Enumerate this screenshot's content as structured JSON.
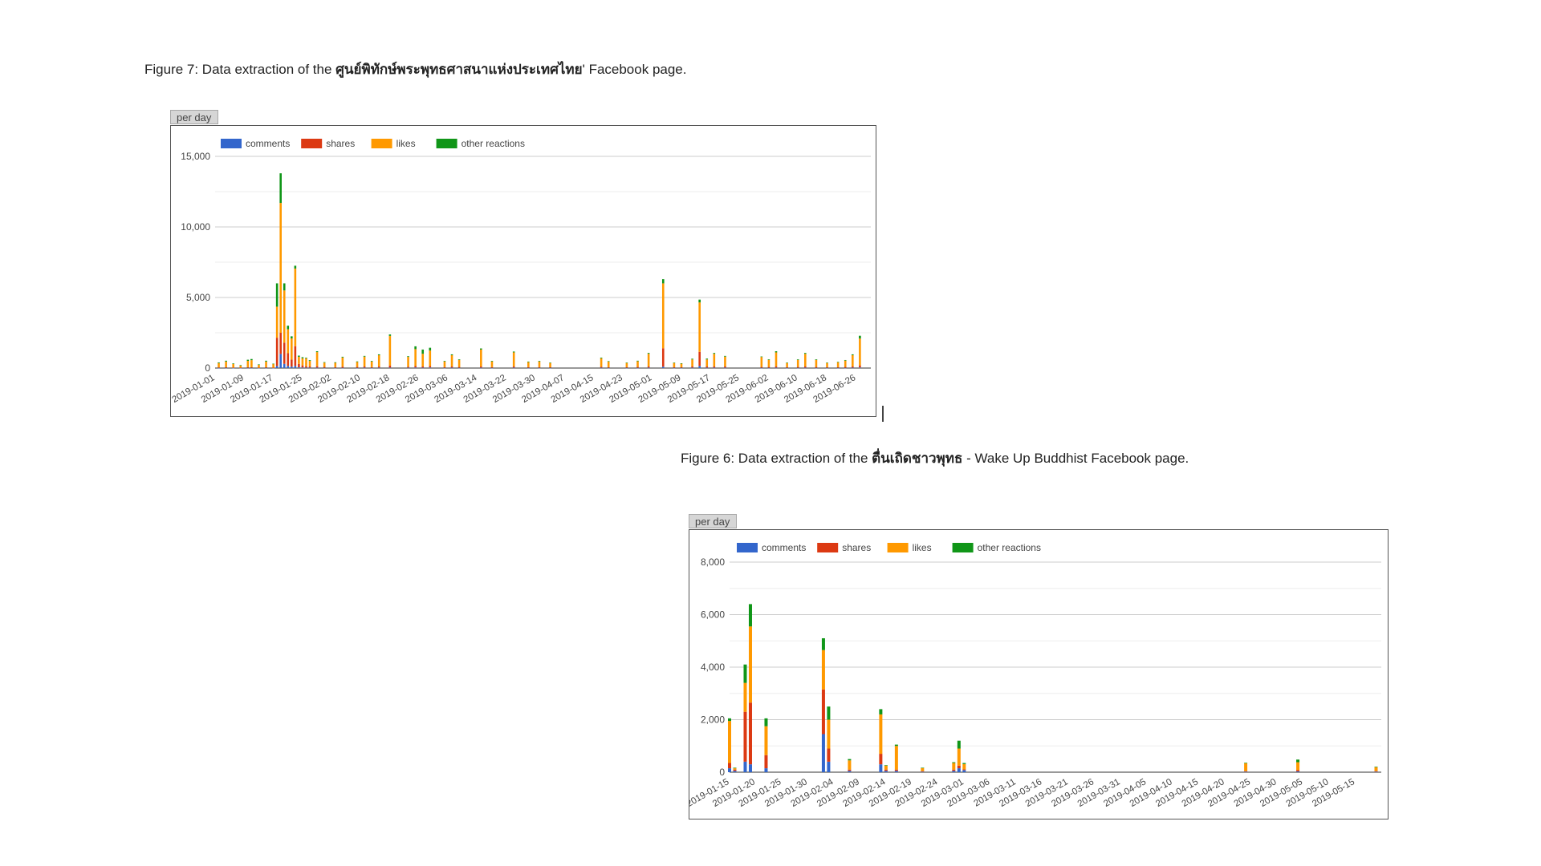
{
  "captions": {
    "fig7_prefix": "Figure 7: Data extraction of the ",
    "fig7_name": "ศูนย์พิทักษ์พระพุทธศาสนาแห่งประเทศไทย",
    "fig7_suffix": "' Facebook page.",
    "fig6_prefix": "Figure 6: Data extraction of the ",
    "fig6_name": "ตื่นเถิดชาวพุทธ",
    "fig6_suffix": " - Wake Up Buddhist Facebook page."
  },
  "tabs": {
    "chart1": "per day",
    "chart2": "per day"
  },
  "colors": {
    "comments": "#3366cc",
    "shares": "#dc3912",
    "likes": "#ff9900",
    "other": "#109618"
  },
  "chart_data": [
    {
      "type": "bar",
      "stacked": true,
      "title": "",
      "xlabel": "",
      "ylabel": "",
      "ylim": [
        0,
        15000
      ],
      "yticks": [
        0,
        5000,
        10000,
        15000
      ],
      "ytick_labels": [
        "0",
        "5,000",
        "10,000",
        "15,000"
      ],
      "legend": [
        "comments",
        "shares",
        "likes",
        "other reactions"
      ],
      "legend_position": "top-left",
      "grid": true,
      "x_start": "2019-01-01",
      "x_end": "2019-06-30",
      "xtick_labels": [
        "2019-01-01",
        "2019-01-09",
        "2019-01-17",
        "2019-01-25",
        "2019-02-02",
        "2019-02-10",
        "2019-02-18",
        "2019-02-26",
        "2019-03-06",
        "2019-03-14",
        "2019-03-22",
        "2019-03-30",
        "2019-04-07",
        "2019-04-15",
        "2019-04-23",
        "2019-05-01",
        "2019-05-09",
        "2019-05-17",
        "2019-05-25",
        "2019-06-02",
        "2019-06-10",
        "2019-06-18",
        "2019-06-26"
      ],
      "points": [
        {
          "x": "2019-01-02",
          "c": 20,
          "s": 30,
          "l": 300,
          "o": 50
        },
        {
          "x": "2019-01-04",
          "c": 20,
          "s": 40,
          "l": 400,
          "o": 60
        },
        {
          "x": "2019-01-06",
          "c": 10,
          "s": 30,
          "l": 250,
          "o": 40
        },
        {
          "x": "2019-01-08",
          "c": 10,
          "s": 20,
          "l": 150,
          "o": 30
        },
        {
          "x": "2019-01-10",
          "c": 20,
          "s": 40,
          "l": 450,
          "o": 80
        },
        {
          "x": "2019-01-11",
          "c": 20,
          "s": 40,
          "l": 500,
          "o": 80
        },
        {
          "x": "2019-01-13",
          "c": 10,
          "s": 20,
          "l": 200,
          "o": 30
        },
        {
          "x": "2019-01-15",
          "c": 20,
          "s": 40,
          "l": 400,
          "o": 60
        },
        {
          "x": "2019-01-17",
          "c": 10,
          "s": 20,
          "l": 250,
          "o": 30
        },
        {
          "x": "2019-01-18",
          "c": 150,
          "s": 2000,
          "l": 2200,
          "o": 1650
        },
        {
          "x": "2019-01-19",
          "c": 1000,
          "s": 1500,
          "l": 9200,
          "o": 2100
        },
        {
          "x": "2019-01-20",
          "c": 300,
          "s": 1500,
          "l": 3700,
          "o": 500
        },
        {
          "x": "2019-01-21",
          "c": 150,
          "s": 900,
          "l": 1700,
          "o": 250
        },
        {
          "x": "2019-01-22",
          "c": 100,
          "s": 500,
          "l": 1500,
          "o": 150
        },
        {
          "x": "2019-01-23",
          "c": 150,
          "s": 1400,
          "l": 5500,
          "o": 200
        },
        {
          "x": "2019-01-24",
          "c": 50,
          "s": 250,
          "l": 500,
          "o": 80
        },
        {
          "x": "2019-01-25",
          "c": 40,
          "s": 150,
          "l": 500,
          "o": 80
        },
        {
          "x": "2019-01-26",
          "c": 30,
          "s": 100,
          "l": 550,
          "o": 50
        },
        {
          "x": "2019-01-27",
          "c": 30,
          "s": 80,
          "l": 400,
          "o": 50
        },
        {
          "x": "2019-01-29",
          "c": 30,
          "s": 100,
          "l": 1000,
          "o": 60
        },
        {
          "x": "2019-01-31",
          "c": 20,
          "s": 60,
          "l": 300,
          "o": 40
        },
        {
          "x": "2019-02-03",
          "c": 20,
          "s": 50,
          "l": 300,
          "o": 40
        },
        {
          "x": "2019-02-05",
          "c": 20,
          "s": 80,
          "l": 650,
          "o": 50
        },
        {
          "x": "2019-02-09",
          "c": 20,
          "s": 60,
          "l": 350,
          "o": 40
        },
        {
          "x": "2019-02-11",
          "c": 30,
          "s": 80,
          "l": 700,
          "o": 50
        },
        {
          "x": "2019-02-13",
          "c": 20,
          "s": 50,
          "l": 400,
          "o": 40
        },
        {
          "x": "2019-02-15",
          "c": 30,
          "s": 80,
          "l": 800,
          "o": 60
        },
        {
          "x": "2019-02-18",
          "c": 30,
          "s": 150,
          "l": 2100,
          "o": 100
        },
        {
          "x": "2019-02-23",
          "c": 30,
          "s": 60,
          "l": 700,
          "o": 50
        },
        {
          "x": "2019-02-25",
          "c": 40,
          "s": 100,
          "l": 1200,
          "o": 200
        },
        {
          "x": "2019-02-27",
          "c": 30,
          "s": 80,
          "l": 900,
          "o": 300
        },
        {
          "x": "2019-03-01",
          "c": 40,
          "s": 100,
          "l": 1100,
          "o": 200
        },
        {
          "x": "2019-03-05",
          "c": 20,
          "s": 50,
          "l": 400,
          "o": 40
        },
        {
          "x": "2019-03-07",
          "c": 30,
          "s": 80,
          "l": 800,
          "o": 60
        },
        {
          "x": "2019-03-09",
          "c": 20,
          "s": 60,
          "l": 500,
          "o": 40
        },
        {
          "x": "2019-03-15",
          "c": 30,
          "s": 80,
          "l": 1200,
          "o": 80
        },
        {
          "x": "2019-03-18",
          "c": 20,
          "s": 50,
          "l": 400,
          "o": 40
        },
        {
          "x": "2019-03-24",
          "c": 30,
          "s": 80,
          "l": 1000,
          "o": 60
        },
        {
          "x": "2019-03-28",
          "c": 20,
          "s": 50,
          "l": 350,
          "o": 40
        },
        {
          "x": "2019-03-31",
          "c": 20,
          "s": 50,
          "l": 400,
          "o": 40
        },
        {
          "x": "2019-04-03",
          "c": 20,
          "s": 40,
          "l": 300,
          "o": 30
        },
        {
          "x": "2019-04-17",
          "c": 30,
          "s": 60,
          "l": 600,
          "o": 50
        },
        {
          "x": "2019-04-19",
          "c": 20,
          "s": 40,
          "l": 400,
          "o": 30
        },
        {
          "x": "2019-04-24",
          "c": 20,
          "s": 40,
          "l": 300,
          "o": 30
        },
        {
          "x": "2019-04-27",
          "c": 20,
          "s": 60,
          "l": 400,
          "o": 40
        },
        {
          "x": "2019-04-30",
          "c": 30,
          "s": 80,
          "l": 900,
          "o": 60
        },
        {
          "x": "2019-05-04",
          "c": 100,
          "s": 1300,
          "l": 4600,
          "o": 300
        },
        {
          "x": "2019-05-07",
          "c": 20,
          "s": 40,
          "l": 300,
          "o": 30
        },
        {
          "x": "2019-05-09",
          "c": 20,
          "s": 40,
          "l": 250,
          "o": 30
        },
        {
          "x": "2019-05-12",
          "c": 30,
          "s": 80,
          "l": 500,
          "o": 50
        },
        {
          "x": "2019-05-14",
          "c": 150,
          "s": 1000,
          "l": 3500,
          "o": 200
        },
        {
          "x": "2019-05-16",
          "c": 30,
          "s": 80,
          "l": 500,
          "o": 60
        },
        {
          "x": "2019-05-18",
          "c": 30,
          "s": 80,
          "l": 900,
          "o": 60
        },
        {
          "x": "2019-05-21",
          "c": 30,
          "s": 80,
          "l": 700,
          "o": 50
        },
        {
          "x": "2019-05-31",
          "c": 20,
          "s": 60,
          "l": 700,
          "o": 40
        },
        {
          "x": "2019-06-02",
          "c": 20,
          "s": 60,
          "l": 500,
          "o": 40
        },
        {
          "x": "2019-06-04",
          "c": 30,
          "s": 80,
          "l": 1000,
          "o": 80
        },
        {
          "x": "2019-06-07",
          "c": 20,
          "s": 40,
          "l": 300,
          "o": 30
        },
        {
          "x": "2019-06-10",
          "c": 20,
          "s": 60,
          "l": 500,
          "o": 40
        },
        {
          "x": "2019-06-12",
          "c": 30,
          "s": 80,
          "l": 900,
          "o": 60
        },
        {
          "x": "2019-06-15",
          "c": 20,
          "s": 60,
          "l": 500,
          "o": 40
        },
        {
          "x": "2019-06-18",
          "c": 20,
          "s": 40,
          "l": 300,
          "o": 30
        },
        {
          "x": "2019-06-21",
          "c": 20,
          "s": 40,
          "l": 350,
          "o": 30
        },
        {
          "x": "2019-06-23",
          "c": 20,
          "s": 60,
          "l": 450,
          "o": 40
        },
        {
          "x": "2019-06-25",
          "c": 30,
          "s": 80,
          "l": 800,
          "o": 60
        },
        {
          "x": "2019-06-27",
          "c": 40,
          "s": 150,
          "l": 1900,
          "o": 200
        }
      ]
    },
    {
      "type": "bar",
      "stacked": true,
      "title": "",
      "xlabel": "",
      "ylabel": "",
      "ylim": [
        0,
        8000
      ],
      "yticks": [
        0,
        2000,
        4000,
        6000,
        8000
      ],
      "ytick_labels": [
        "0",
        "2,000",
        "4,000",
        "6,000",
        "8,000"
      ],
      "legend": [
        "comments",
        "shares",
        "likes",
        "other reactions"
      ],
      "legend_position": "top-left",
      "grid": true,
      "x_start": "2019-01-15",
      "x_end": "2019-05-20",
      "xtick_labels": [
        "2019-01-15",
        "2019-01-20",
        "2019-01-25",
        "2019-01-30",
        "2019-02-04",
        "2019-02-09",
        "2019-02-14",
        "2019-02-19",
        "2019-02-24",
        "2019-03-01",
        "2019-03-06",
        "2019-03-11",
        "2019-03-16",
        "2019-03-21",
        "2019-03-26",
        "2019-03-31",
        "2019-04-05",
        "2019-04-10",
        "2019-04-15",
        "2019-04-20",
        "2019-04-25",
        "2019-04-30",
        "2019-05-05",
        "2019-05-10",
        "2019-05-15"
      ],
      "points": [
        {
          "x": "2019-01-15",
          "c": 150,
          "s": 200,
          "l": 1600,
          "o": 100
        },
        {
          "x": "2019-01-16",
          "c": 50,
          "s": 50,
          "l": 50,
          "o": 20
        },
        {
          "x": "2019-01-18",
          "c": 400,
          "s": 1900,
          "l": 1100,
          "o": 700
        },
        {
          "x": "2019-01-19",
          "c": 300,
          "s": 2350,
          "l": 2900,
          "o": 850
        },
        {
          "x": "2019-01-22",
          "c": 150,
          "s": 500,
          "l": 1100,
          "o": 300
        },
        {
          "x": "2019-02-02",
          "c": 1450,
          "s": 1700,
          "l": 1500,
          "o": 450
        },
        {
          "x": "2019-02-03",
          "c": 400,
          "s": 500,
          "l": 1100,
          "o": 500
        },
        {
          "x": "2019-02-07",
          "c": 50,
          "s": 50,
          "l": 350,
          "o": 50
        },
        {
          "x": "2019-02-13",
          "c": 300,
          "s": 400,
          "l": 1500,
          "o": 200
        },
        {
          "x": "2019-02-14",
          "c": 50,
          "s": 50,
          "l": 150,
          "o": 20
        },
        {
          "x": "2019-02-16",
          "c": 50,
          "s": 50,
          "l": 900,
          "o": 50
        },
        {
          "x": "2019-02-21",
          "c": 20,
          "s": 20,
          "l": 120,
          "o": 10
        },
        {
          "x": "2019-02-27",
          "c": 50,
          "s": 50,
          "l": 250,
          "o": 30
        },
        {
          "x": "2019-02-28",
          "c": 150,
          "s": 100,
          "l": 650,
          "o": 300
        },
        {
          "x": "2019-03-01",
          "c": 80,
          "s": 30,
          "l": 200,
          "o": 40
        },
        {
          "x": "2019-04-24",
          "c": 20,
          "s": 20,
          "l": 300,
          "o": 20
        },
        {
          "x": "2019-05-04",
          "c": 30,
          "s": 50,
          "l": 300,
          "o": 100
        },
        {
          "x": "2019-05-19",
          "c": 20,
          "s": 20,
          "l": 150,
          "o": 20
        }
      ]
    }
  ]
}
